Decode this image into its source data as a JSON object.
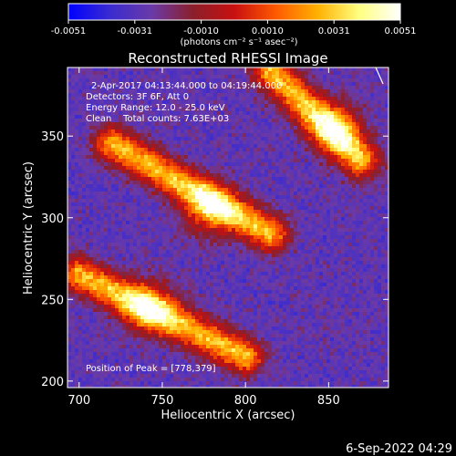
{
  "colorbar": {
    "ticks": [
      "-0.0051",
      "-0.0031",
      "-0.0010",
      "0.0010",
      "0.0031",
      "0.0051"
    ],
    "unit_label": "(photons cm⁻² s⁻¹ asec⁻²)",
    "stops": [
      "#0000ff",
      "#3a2bd0",
      "#6a3aa8",
      "#8b1f2a",
      "#c81010",
      "#ff5a00",
      "#ffb000",
      "#ffff80",
      "#ffffff"
    ]
  },
  "chart_data": {
    "type": "heatmap",
    "title": "Reconstructed RHESSI Image",
    "xlabel": "Heliocentric X (arcsec)",
    "ylabel": "Heliocentric Y (arcsec)",
    "xlim": [
      693,
      886
    ],
    "ylim": [
      196,
      392
    ],
    "x_ticks": [
      700,
      750,
      800,
      850
    ],
    "y_ticks": [
      200,
      250,
      300,
      350
    ],
    "value_range": [
      -0.0051,
      0.0051
    ],
    "colormap_stops": [
      "#0000ff",
      "#3a2bd0",
      "#6a3aa8",
      "#8b1f2a",
      "#c81010",
      "#ff5a00",
      "#ffb000",
      "#ffff80",
      "#ffffff"
    ],
    "bright_bands": [
      {
        "x0": 700,
        "y0": 265,
        "x1": 800,
        "y1": 215,
        "peak_x": 742,
        "peak_y": 245
      },
      {
        "x0": 720,
        "y0": 345,
        "x1": 815,
        "y1": 290,
        "peak_x": 778,
        "peak_y": 305
      },
      {
        "x0": 815,
        "y0": 390,
        "x1": 870,
        "y1": 335,
        "peak_x": 855,
        "peak_y": 355
      }
    ],
    "peak": [
      778,
      379
    ],
    "annotations": [
      "2-Apr-2017 04:13:44.000 to 04:19:44.000",
      "Detectors: 3F 6F, Att 0",
      "Energy Range: 12.0 - 25.0 keV",
      "Clean    Total counts: 7.63E+03",
      "Position of Peak = [778,379]"
    ]
  },
  "footer": {
    "timestamp": "6-Sep-2022 04:29"
  }
}
